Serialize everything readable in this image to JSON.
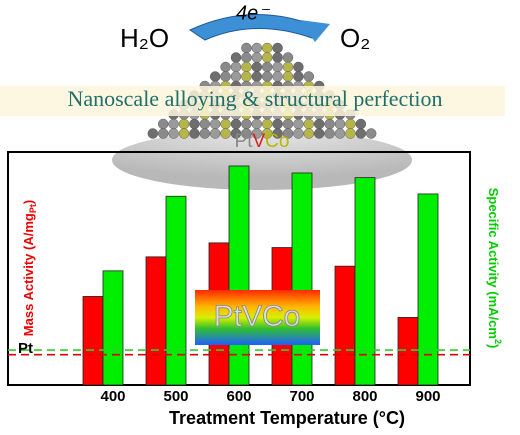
{
  "illustration": {
    "reactant": "H₂O",
    "electrons": "4e⁻",
    "product": "O₂",
    "banner": "Nanoscale alloying & structural perfection",
    "alloy": {
      "pt": "Pt",
      "v": "V",
      "co": "Co"
    }
  },
  "chart_data": {
    "type": "bar",
    "categories": [
      "400",
      "500",
      "600",
      "700",
      "800",
      "900"
    ],
    "series": [
      {
        "name": "Mass Activity",
        "color": "#ff0000",
        "values": [
          3.8,
          5.5,
          6.1,
          5.9,
          5.1,
          2.9
        ]
      },
      {
        "name": "Specific Activity",
        "color": "#00ee00",
        "axis": "y2",
        "values": [
          4.9,
          8.1,
          9.4,
          9.1,
          8.9,
          8.2
        ]
      }
    ],
    "y_label": {
      "text": "Mass Activity (A/mg",
      "sub": "Pt",
      "end": ")"
    },
    "y2_label": {
      "text": "Specific Activity (mA/cm",
      "sup": "2",
      "end": ")"
    },
    "x_label": "Treatment Temperature (°C)",
    "ylim": [
      0,
      10
    ],
    "y2lim": [
      0,
      10
    ],
    "reference_label": "Pt",
    "reference_lines": [
      {
        "axis": "y",
        "value": 1.3,
        "color": "#dd0000"
      },
      {
        "axis": "y2",
        "value": 1.5,
        "color": "#33cc33"
      }
    ],
    "badge": "PtVCo"
  }
}
